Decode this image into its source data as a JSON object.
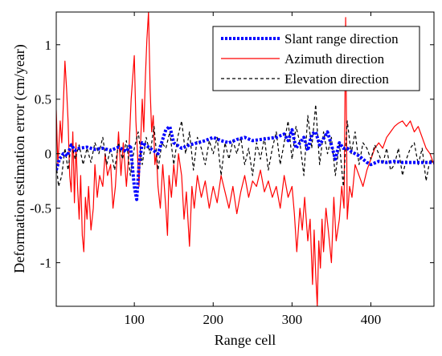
{
  "chart_data": {
    "type": "line",
    "title": "",
    "xlabel": "Range cell",
    "ylabel": "Deformation estimation error (cm/year)",
    "xlim": [
      1,
      480
    ],
    "ylim": [
      -1.4,
      1.3
    ],
    "xticks": [
      100,
      200,
      300,
      400
    ],
    "yticks": [
      -1,
      -0.5,
      0,
      0.5,
      1
    ],
    "xtick_labels": [
      "100",
      "200",
      "300",
      "400"
    ],
    "ytick_labels": [
      "-1",
      "-0.5",
      "0",
      "0.5",
      "1"
    ],
    "grid": false,
    "legend_position": "top-right",
    "series": [
      {
        "name": "Slant range direction",
        "color": "#0000ff",
        "style": "dotted",
        "x": [
          1,
          5,
          10,
          15,
          20,
          25,
          30,
          40,
          50,
          60,
          70,
          80,
          90,
          95,
          100,
          103,
          106,
          110,
          120,
          130,
          140,
          145,
          150,
          160,
          170,
          180,
          190,
          200,
          210,
          220,
          230,
          240,
          250,
          260,
          270,
          280,
          290,
          295,
          300,
          305,
          310,
          315,
          320,
          325,
          330,
          335,
          340,
          345,
          350,
          355,
          360,
          365,
          370,
          375,
          380,
          385,
          390,
          395,
          400,
          410,
          420,
          430,
          440,
          450,
          460,
          470,
          480
        ],
        "y": [
          -0.15,
          -0.05,
          0.0,
          -0.02,
          0.08,
          0.03,
          0.05,
          0.06,
          0.04,
          0.05,
          0.03,
          0.06,
          0.02,
          0.08,
          -0.3,
          -0.42,
          -0.1,
          0.1,
          0.05,
          0.0,
          0.22,
          0.25,
          0.1,
          0.05,
          0.08,
          0.1,
          0.12,
          0.15,
          0.12,
          0.1,
          0.13,
          0.15,
          0.12,
          0.13,
          0.14,
          0.15,
          0.18,
          0.12,
          0.22,
          0.05,
          0.1,
          0.15,
          0.03,
          0.18,
          0.2,
          0.08,
          0.14,
          0.2,
          0.08,
          -0.05,
          0.1,
          0.05,
          0.05,
          0.02,
          0.0,
          -0.02,
          -0.05,
          -0.08,
          -0.1,
          -0.07,
          -0.08,
          -0.07,
          -0.08,
          -0.08,
          -0.08,
          -0.08,
          -0.08
        ]
      },
      {
        "name": "Azimuth direction",
        "color": "#ff0000",
        "style": "solid",
        "x": [
          1,
          3,
          6,
          8,
          10,
          12,
          14,
          16,
          18,
          20,
          22,
          24,
          26,
          28,
          30,
          32,
          34,
          36,
          38,
          40,
          42,
          45,
          48,
          50,
          53,
          56,
          60,
          63,
          66,
          70,
          73,
          76,
          80,
          83,
          86,
          90,
          93,
          96,
          100,
          102,
          104,
          106,
          108,
          110,
          112,
          114,
          116,
          118,
          120,
          122,
          124,
          126,
          128,
          130,
          133,
          136,
          140,
          142,
          144,
          147,
          150,
          153,
          156,
          160,
          163,
          166,
          170,
          173,
          176,
          180,
          185,
          190,
          195,
          200,
          205,
          210,
          215,
          220,
          225,
          230,
          235,
          240,
          245,
          250,
          255,
          260,
          265,
          270,
          275,
          280,
          285,
          290,
          295,
          300,
          303,
          306,
          310,
          313,
          316,
          320,
          323,
          326,
          328,
          330,
          332,
          334,
          336,
          338,
          340,
          343,
          346,
          350,
          353,
          356,
          360,
          363,
          366,
          368,
          370,
          373,
          376,
          380,
          385,
          390,
          395,
          400,
          405,
          410,
          415,
          420,
          425,
          430,
          435,
          440,
          445,
          450,
          455,
          460,
          465,
          470,
          475,
          480
        ],
        "y": [
          0.4,
          -0.1,
          0.3,
          0.1,
          0.45,
          0.85,
          0.6,
          0.3,
          -0.2,
          -0.35,
          0.2,
          -0.45,
          0.1,
          -0.3,
          -0.6,
          -0.2,
          -0.75,
          -0.9,
          -0.4,
          -0.6,
          -0.3,
          -0.7,
          -0.5,
          -0.1,
          -0.4,
          -0.2,
          -0.3,
          0.0,
          -0.2,
          -0.1,
          -0.5,
          -0.3,
          0.2,
          -0.2,
          0.1,
          -0.3,
          0.0,
          0.5,
          0.9,
          0.3,
          0.0,
          -0.3,
          0.1,
          0.5,
          0.2,
          0.7,
          1.05,
          1.3,
          0.6,
          0.2,
          0.35,
          -0.1,
          0.0,
          -0.3,
          -0.5,
          -0.1,
          -0.5,
          -0.75,
          -0.2,
          -0.4,
          -0.1,
          -0.3,
          0.0,
          -0.2,
          -0.6,
          -0.35,
          -0.85,
          -0.3,
          -0.5,
          -0.2,
          -0.4,
          -0.25,
          -0.5,
          -0.3,
          -0.45,
          -0.2,
          -0.35,
          -0.5,
          -0.3,
          -0.55,
          -0.35,
          -0.2,
          -0.4,
          -0.25,
          -0.3,
          -0.15,
          -0.35,
          -0.25,
          -0.4,
          -0.3,
          -0.5,
          -0.2,
          -0.4,
          -0.3,
          -0.55,
          -0.9,
          -0.5,
          -0.7,
          -0.4,
          -0.8,
          -0.6,
          -1.2,
          -0.7,
          -1.1,
          -1.4,
          -0.8,
          -1.05,
          -0.6,
          -0.9,
          -0.5,
          -0.7,
          -1.0,
          -0.4,
          -0.8,
          -0.6,
          -0.3,
          -0.5,
          1.25,
          -0.6,
          -0.3,
          -0.4,
          -0.1,
          -0.2,
          -0.3,
          -0.15,
          -0.05,
          0.05,
          0.1,
          0.05,
          0.15,
          0.2,
          0.25,
          0.28,
          0.3,
          0.25,
          0.3,
          0.2,
          0.25,
          0.15,
          0.05,
          0.0,
          -0.1
        ]
      },
      {
        "name": "Elevation direction",
        "color": "#000000",
        "style": "dashed",
        "x": [
          1,
          4,
          8,
          12,
          16,
          20,
          25,
          30,
          35,
          40,
          45,
          50,
          55,
          60,
          65,
          70,
          75,
          80,
          85,
          90,
          95,
          100,
          105,
          110,
          115,
          120,
          125,
          130,
          135,
          140,
          145,
          150,
          155,
          160,
          165,
          170,
          175,
          180,
          185,
          190,
          195,
          200,
          205,
          210,
          215,
          220,
          225,
          230,
          235,
          240,
          245,
          250,
          255,
          260,
          265,
          270,
          275,
          280,
          285,
          290,
          295,
          300,
          305,
          310,
          315,
          320,
          325,
          330,
          335,
          340,
          345,
          350,
          355,
          360,
          365,
          370,
          375,
          380,
          385,
          390,
          395,
          400,
          405,
          410,
          415,
          420,
          425,
          430,
          435,
          440,
          445,
          450,
          455,
          460,
          465,
          470,
          475,
          480
        ],
        "y": [
          -0.1,
          -0.3,
          -0.2,
          0.05,
          -0.15,
          0.1,
          -0.05,
          0.08,
          -0.1,
          0.05,
          -0.08,
          0.1,
          0.0,
          0.15,
          -0.1,
          0.05,
          -0.15,
          0.1,
          -0.05,
          0.12,
          -0.2,
          0.05,
          0.2,
          -0.1,
          0.15,
          0.0,
          0.25,
          -0.15,
          0.1,
          0.05,
          0.2,
          -0.1,
          0.15,
          0.3,
          0.0,
          0.2,
          -0.15,
          0.15,
          0.05,
          -0.1,
          0.12,
          0.0,
          0.15,
          -0.2,
          0.1,
          -0.05,
          0.12,
          0.0,
          0.15,
          -0.1,
          0.05,
          -0.2,
          0.1,
          -0.05,
          0.15,
          -0.15,
          0.05,
          0.2,
          -0.1,
          0.1,
          0.3,
          -0.05,
          0.25,
          0.1,
          -0.2,
          0.35,
          0.05,
          0.45,
          -0.1,
          0.2,
          0.0,
          0.15,
          -0.2,
          0.1,
          -0.3,
          0.3,
          0.0,
          0.2,
          -0.1,
          0.1,
          0.05,
          -0.05,
          0.08,
          0.0,
          -0.1,
          0.05,
          -0.15,
          -0.1,
          0.05,
          -0.2,
          -0.05,
          0.05,
          0.1,
          -0.1,
          0.05,
          -0.25,
          -0.05,
          -0.1
        ]
      }
    ]
  }
}
